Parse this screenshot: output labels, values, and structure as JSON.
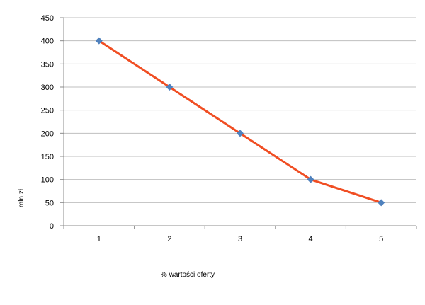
{
  "chart_data": {
    "type": "line",
    "title": "",
    "xlabel": "% wartości oferty",
    "ylabel": "mln zł",
    "x": [
      1,
      2,
      3,
      4,
      5
    ],
    "series": [
      {
        "values": [
          400,
          300,
          200,
          100,
          50
        ]
      }
    ],
    "ylim": [
      0,
      450
    ],
    "yticks": [
      0,
      50,
      100,
      150,
      200,
      250,
      300,
      350,
      400,
      450
    ],
    "grid": "horizontal",
    "legend": "none",
    "colors": {
      "line": "#f04e23",
      "marker": "#4f81bd",
      "grid": "#bfbfbf",
      "axis": "#8c8c8c"
    }
  }
}
